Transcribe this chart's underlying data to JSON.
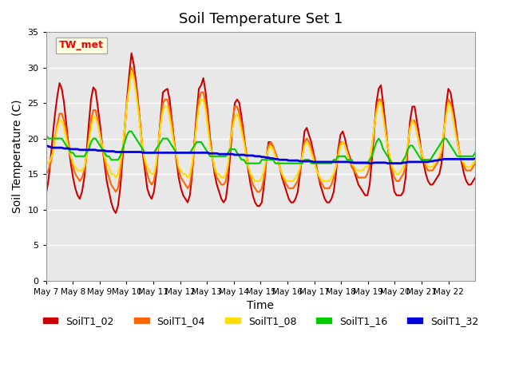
{
  "title": "Soil Temperature Set 1",
  "xlabel": "Time",
  "ylabel": "Soil Temperature (C)",
  "ylim": [
    0,
    35
  ],
  "annotation": "TW_met",
  "bg_color": "#e8e8e8",
  "series": {
    "SoilT1_02": {
      "color": "#cc0000",
      "data": [
        12.2,
        14.0,
        17.0,
        20.5,
        23.5,
        26.0,
        27.8,
        27.0,
        25.0,
        22.0,
        19.0,
        16.5,
        14.5,
        13.0,
        12.0,
        11.5,
        12.5,
        14.5,
        18.0,
        22.0,
        25.5,
        27.2,
        26.8,
        24.5,
        22.0,
        19.0,
        16.5,
        14.0,
        12.5,
        11.0,
        10.0,
        9.5,
        10.5,
        13.0,
        17.0,
        21.5,
        25.5,
        29.0,
        32.0,
        30.5,
        28.0,
        25.0,
        21.5,
        18.0,
        15.5,
        13.0,
        12.0,
        11.5,
        12.5,
        15.0,
        19.0,
        23.0,
        26.5,
        26.8,
        27.0,
        25.5,
        22.5,
        19.5,
        17.0,
        14.5,
        13.0,
        12.0,
        11.5,
        11.0,
        12.0,
        15.0,
        19.5,
        23.5,
        27.0,
        27.5,
        28.5,
        26.5,
        23.5,
        20.0,
        17.5,
        15.0,
        13.5,
        12.5,
        11.5,
        11.0,
        11.5,
        14.0,
        18.0,
        22.0,
        25.0,
        25.5,
        25.0,
        23.0,
        20.5,
        18.0,
        15.5,
        13.5,
        12.0,
        11.0,
        10.5,
        10.5,
        11.0,
        13.5,
        17.0,
        19.5,
        19.5,
        18.5,
        18.0,
        17.0,
        16.0,
        14.5,
        13.5,
        12.5,
        11.5,
        11.0,
        11.0,
        11.5,
        12.5,
        15.0,
        18.0,
        21.0,
        21.5,
        20.5,
        19.5,
        18.0,
        16.5,
        15.0,
        13.5,
        12.5,
        11.5,
        11.0,
        11.0,
        11.5,
        12.5,
        15.0,
        18.5,
        20.5,
        21.0,
        20.0,
        18.5,
        17.5,
        16.5,
        15.5,
        14.5,
        13.5,
        13.0,
        12.5,
        12.0,
        12.0,
        13.5,
        17.0,
        21.0,
        25.0,
        27.0,
        27.5,
        25.0,
        22.0,
        19.0,
        16.5,
        14.5,
        12.5,
        12.0,
        12.0,
        12.0,
        12.5,
        14.5,
        19.0,
        22.5,
        24.5,
        24.5,
        22.5,
        20.5,
        18.0,
        16.5,
        15.0,
        14.0,
        13.5,
        13.5,
        14.0,
        14.5,
        15.0,
        16.5,
        20.5,
        24.5,
        27.0,
        26.5,
        24.5,
        22.5,
        20.0,
        18.0,
        16.5,
        15.0,
        14.0,
        13.5,
        13.5,
        14.0,
        14.5
      ]
    },
    "SoilT1_04": {
      "color": "#ff6600",
      "data": [
        15.0,
        15.5,
        16.5,
        18.0,
        20.0,
        22.0,
        23.5,
        23.5,
        22.5,
        21.0,
        19.0,
        17.5,
        16.0,
        15.0,
        14.5,
        14.0,
        14.5,
        15.5,
        17.5,
        20.0,
        22.5,
        24.0,
        24.0,
        22.5,
        20.5,
        18.5,
        17.0,
        15.5,
        14.5,
        13.5,
        13.0,
        12.5,
        13.0,
        15.0,
        18.0,
        21.5,
        25.0,
        27.5,
        30.0,
        29.0,
        27.0,
        24.5,
        21.5,
        18.5,
        16.5,
        15.0,
        14.0,
        13.5,
        14.0,
        16.0,
        19.5,
        22.5,
        25.0,
        25.5,
        25.5,
        24.0,
        22.0,
        19.5,
        17.5,
        15.5,
        14.5,
        14.0,
        13.5,
        13.0,
        13.5,
        15.5,
        19.0,
        22.5,
        25.5,
        26.5,
        26.5,
        25.0,
        22.5,
        19.5,
        17.5,
        15.5,
        14.5,
        14.0,
        13.5,
        13.5,
        14.0,
        16.0,
        19.5,
        22.5,
        24.5,
        24.5,
        23.5,
        22.0,
        20.0,
        18.0,
        16.0,
        14.5,
        13.5,
        13.0,
        12.5,
        12.5,
        13.0,
        14.5,
        17.0,
        19.0,
        19.5,
        19.0,
        18.0,
        17.0,
        16.0,
        15.0,
        14.0,
        13.5,
        13.0,
        13.0,
        13.0,
        13.5,
        14.0,
        15.5,
        17.5,
        19.5,
        20.0,
        19.5,
        18.5,
        17.5,
        16.0,
        15.0,
        14.0,
        13.5,
        13.0,
        13.0,
        13.0,
        13.5,
        14.5,
        16.0,
        18.0,
        19.5,
        19.5,
        19.0,
        18.0,
        17.0,
        16.0,
        15.5,
        15.0,
        14.5,
        14.5,
        14.5,
        14.5,
        15.0,
        16.0,
        18.5,
        21.5,
        24.0,
        25.5,
        25.5,
        23.5,
        21.0,
        19.0,
        17.0,
        15.5,
        14.5,
        14.0,
        14.0,
        14.5,
        15.0,
        16.0,
        19.0,
        21.5,
        22.5,
        22.5,
        21.0,
        19.5,
        18.0,
        17.0,
        16.0,
        15.5,
        15.5,
        15.5,
        16.0,
        16.5,
        17.0,
        18.0,
        21.0,
        23.5,
        25.5,
        25.0,
        23.5,
        21.5,
        19.5,
        18.0,
        17.0,
        16.0,
        15.5,
        15.5,
        15.5,
        16.0,
        16.5
      ]
    },
    "SoilT1_08": {
      "color": "#ffdd00",
      "data": [
        16.5,
        16.5,
        17.0,
        18.0,
        19.5,
        21.5,
        22.5,
        22.5,
        21.5,
        20.0,
        18.5,
        17.5,
        16.5,
        16.0,
        15.5,
        15.5,
        15.5,
        16.0,
        17.5,
        19.5,
        21.5,
        23.0,
        23.0,
        22.0,
        20.5,
        19.0,
        17.5,
        16.5,
        16.0,
        15.0,
        15.0,
        14.5,
        15.0,
        16.5,
        18.5,
        21.5,
        25.0,
        27.0,
        29.5,
        28.5,
        26.5,
        24.0,
        21.0,
        18.5,
        17.0,
        16.0,
        15.5,
        15.0,
        15.0,
        16.5,
        19.5,
        22.0,
        24.0,
        24.5,
        24.5,
        23.0,
        21.0,
        19.0,
        17.5,
        16.0,
        15.5,
        15.0,
        15.0,
        14.5,
        15.0,
        16.5,
        19.0,
        22.0,
        24.5,
        25.5,
        25.5,
        24.0,
        21.5,
        19.0,
        17.5,
        16.0,
        15.0,
        15.0,
        14.5,
        14.5,
        15.0,
        16.5,
        19.5,
        21.5,
        23.0,
        23.5,
        22.5,
        21.0,
        19.5,
        17.5,
        16.0,
        15.0,
        14.5,
        14.0,
        14.0,
        14.0,
        14.5,
        15.5,
        17.5,
        18.5,
        19.0,
        18.5,
        17.5,
        17.0,
        16.0,
        15.0,
        14.5,
        14.0,
        14.0,
        14.0,
        14.0,
        14.5,
        15.0,
        16.0,
        17.5,
        19.0,
        19.5,
        19.0,
        18.0,
        17.0,
        16.0,
        15.0,
        14.5,
        14.0,
        14.0,
        14.0,
        14.0,
        14.5,
        15.0,
        16.0,
        17.5,
        19.0,
        19.5,
        19.0,
        18.0,
        17.0,
        16.5,
        16.0,
        15.5,
        15.5,
        15.5,
        15.5,
        16.0,
        16.0,
        17.0,
        19.0,
        21.5,
        23.5,
        25.0,
        25.0,
        23.0,
        21.0,
        19.0,
        17.5,
        16.0,
        15.5,
        15.0,
        15.0,
        15.5,
        16.0,
        17.0,
        19.5,
        21.5,
        22.5,
        22.0,
        21.0,
        19.5,
        18.0,
        17.0,
        16.5,
        16.0,
        16.0,
        16.0,
        16.5,
        17.0,
        17.5,
        18.5,
        21.0,
        23.0,
        25.0,
        24.5,
        23.0,
        21.0,
        19.5,
        18.0,
        17.0,
        16.5,
        16.0,
        16.0,
        16.0,
        16.5,
        17.0
      ]
    },
    "SoilT1_16": {
      "color": "#00cc00",
      "data": [
        20.5,
        20.0,
        20.0,
        20.0,
        20.0,
        20.0,
        20.0,
        20.0,
        19.5,
        19.0,
        18.5,
        18.0,
        18.0,
        17.5,
        17.5,
        17.5,
        17.5,
        17.5,
        18.0,
        18.5,
        19.5,
        20.0,
        20.0,
        19.5,
        19.0,
        18.5,
        18.0,
        17.5,
        17.5,
        17.0,
        17.0,
        17.0,
        17.0,
        17.5,
        18.5,
        19.5,
        20.5,
        21.0,
        21.0,
        20.5,
        20.0,
        19.5,
        19.0,
        18.5,
        18.0,
        18.0,
        18.0,
        18.0,
        18.0,
        18.5,
        19.0,
        19.5,
        20.0,
        20.0,
        20.0,
        19.5,
        19.0,
        18.5,
        18.0,
        18.0,
        18.0,
        18.0,
        18.0,
        18.0,
        18.0,
        18.5,
        19.0,
        19.5,
        19.5,
        19.5,
        19.0,
        18.5,
        18.0,
        17.5,
        17.5,
        17.5,
        17.5,
        17.5,
        17.5,
        17.5,
        17.5,
        18.0,
        18.5,
        18.5,
        18.5,
        18.0,
        17.5,
        17.0,
        17.0,
        16.5,
        16.5,
        16.5,
        16.5,
        16.5,
        16.5,
        16.5,
        17.0,
        17.0,
        17.0,
        17.0,
        17.0,
        17.0,
        16.5,
        16.5,
        16.5,
        16.5,
        16.5,
        16.5,
        16.5,
        16.5,
        16.5,
        16.5,
        16.5,
        16.5,
        16.5,
        17.0,
        17.0,
        17.0,
        16.5,
        16.5,
        16.5,
        16.5,
        16.5,
        16.5,
        16.5,
        16.5,
        16.5,
        16.5,
        17.0,
        17.0,
        17.5,
        17.5,
        17.5,
        17.5,
        17.0,
        17.0,
        17.0,
        16.5,
        16.5,
        16.5,
        16.5,
        16.5,
        16.5,
        16.5,
        17.0,
        17.5,
        18.5,
        19.5,
        20.0,
        19.5,
        18.5,
        18.0,
        17.5,
        17.0,
        16.5,
        16.5,
        16.5,
        16.5,
        16.5,
        17.0,
        17.5,
        18.5,
        19.0,
        19.0,
        18.5,
        18.0,
        17.5,
        17.0,
        17.0,
        17.0,
        17.0,
        17.0,
        17.5,
        18.0,
        18.5,
        19.0,
        19.5,
        20.0,
        20.0,
        19.5,
        19.0,
        18.5,
        18.0,
        17.5,
        17.5,
        17.5,
        17.5,
        17.5,
        17.5,
        17.5,
        17.5,
        18.0
      ]
    },
    "SoilT1_32": {
      "color": "#0000dd",
      "data": [
        19.0,
        18.9,
        18.8,
        18.7,
        18.7,
        18.7,
        18.7,
        18.7,
        18.6,
        18.6,
        18.6,
        18.5,
        18.5,
        18.5,
        18.5,
        18.4,
        18.4,
        18.4,
        18.4,
        18.4,
        18.4,
        18.4,
        18.4,
        18.3,
        18.3,
        18.3,
        18.3,
        18.2,
        18.2,
        18.2,
        18.2,
        18.1,
        18.1,
        18.1,
        18.1,
        18.1,
        18.1,
        18.1,
        18.1,
        18.1,
        18.1,
        18.1,
        18.1,
        18.0,
        18.0,
        18.0,
        18.0,
        18.0,
        18.0,
        18.0,
        18.0,
        18.0,
        18.0,
        18.0,
        18.0,
        18.0,
        18.0,
        18.0,
        18.0,
        18.0,
        18.0,
        18.0,
        18.0,
        18.0,
        18.0,
        18.0,
        18.0,
        18.0,
        18.0,
        18.0,
        18.0,
        18.0,
        18.0,
        17.9,
        17.9,
        17.9,
        17.9,
        17.8,
        17.8,
        17.8,
        17.8,
        17.8,
        17.8,
        17.8,
        17.7,
        17.7,
        17.7,
        17.7,
        17.7,
        17.6,
        17.6,
        17.6,
        17.6,
        17.5,
        17.5,
        17.5,
        17.4,
        17.4,
        17.3,
        17.3,
        17.2,
        17.2,
        17.1,
        17.1,
        17.0,
        17.0,
        17.0,
        17.0,
        16.9,
        16.9,
        16.9,
        16.9,
        16.9,
        16.8,
        16.8,
        16.8,
        16.8,
        16.8,
        16.8,
        16.7,
        16.7,
        16.7,
        16.7,
        16.7,
        16.7,
        16.7,
        16.7,
        16.7,
        16.7,
        16.7,
        16.7,
        16.7,
        16.7,
        16.7,
        16.7,
        16.7,
        16.6,
        16.6,
        16.6,
        16.6,
        16.6,
        16.6,
        16.6,
        16.6,
        16.5,
        16.5,
        16.6,
        16.6,
        16.6,
        16.6,
        16.6,
        16.6,
        16.5,
        16.5,
        16.5,
        16.5,
        16.5,
        16.5,
        16.5,
        16.6,
        16.6,
        16.7,
        16.7,
        16.7,
        16.7,
        16.7,
        16.7,
        16.7,
        16.7,
        16.7,
        16.7,
        16.8,
        16.8,
        16.9,
        16.9,
        17.0,
        17.0,
        17.1,
        17.1,
        17.1,
        17.1,
        17.1,
        17.1,
        17.1,
        17.1,
        17.1,
        17.1,
        17.1,
        17.1,
        17.1,
        17.1,
        17.2
      ]
    }
  },
  "x_tick_labels": [
    "May 7",
    "May 8",
    "May 9",
    "May 10",
    "May 11",
    "May 12",
    "May 13",
    "May 14",
    "May 15",
    "May 16",
    "May 17",
    "May 18",
    "May 19",
    "May 20",
    "May 21",
    "May 22"
  ],
  "n_points": 192,
  "days": 16
}
